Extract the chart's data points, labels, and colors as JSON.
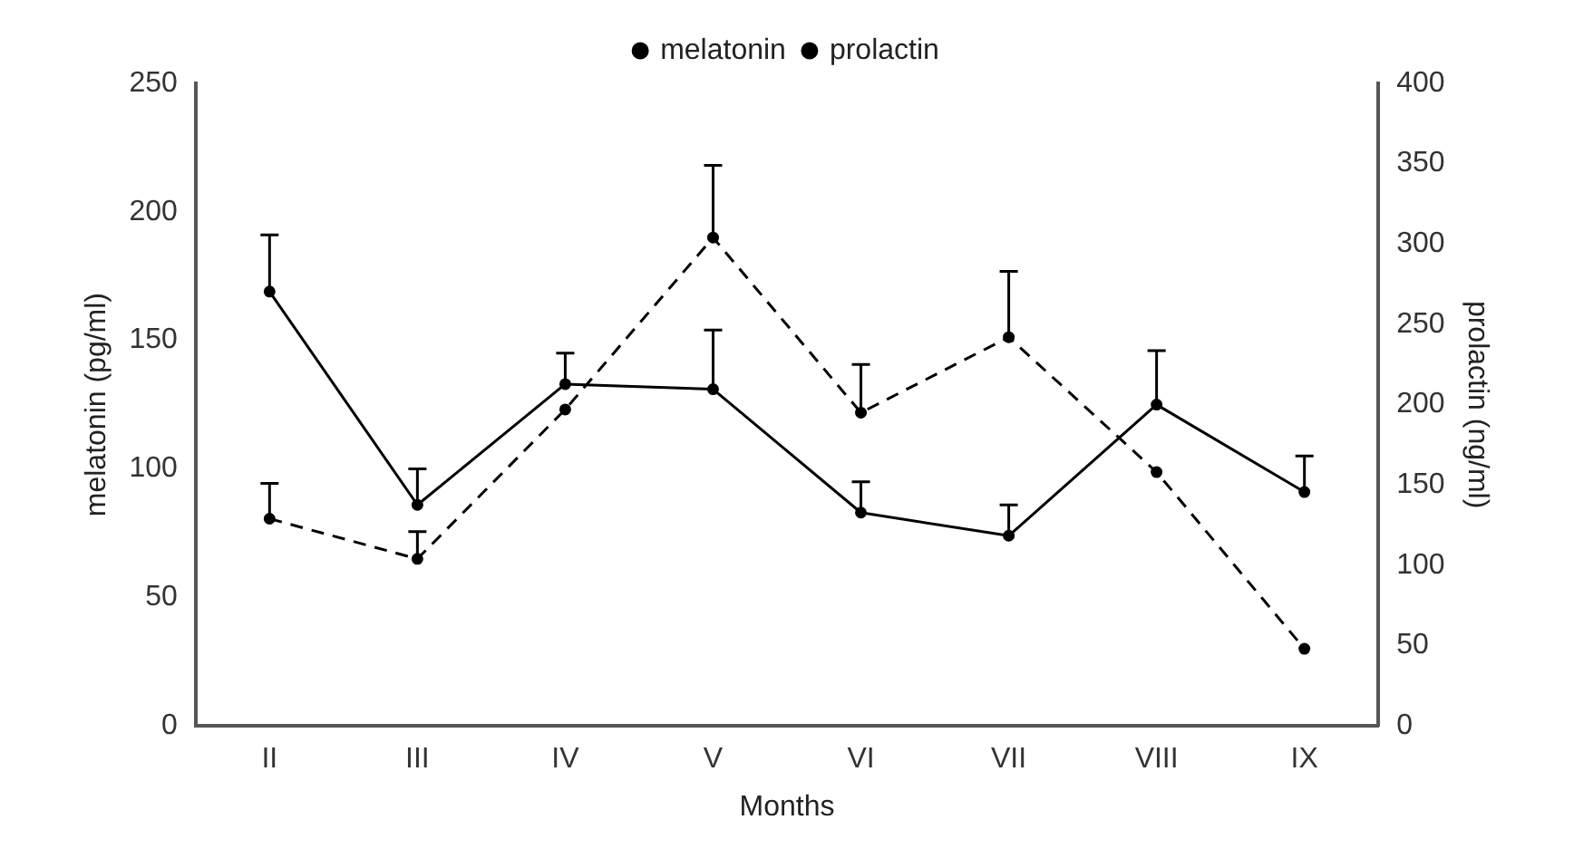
{
  "chart_data": {
    "type": "line",
    "xlabel": "Months",
    "ylabel": "melatonin (pg/ml)",
    "y2label": "prolactin (ng/ml)",
    "categories": [
      "II",
      "III",
      "IV",
      "V",
      "VI",
      "VII",
      "VIII",
      "IX"
    ],
    "series": [
      {
        "name": "melatonin",
        "color": "#000000",
        "line_style": "solid",
        "values": [
          169,
          86,
          133,
          131,
          83,
          74,
          125,
          91
        ],
        "errors": [
          [
            169,
            191
          ],
          [
            86,
            100
          ],
          [
            133,
            145
          ],
          [
            131,
            154
          ],
          [
            83,
            95
          ],
          [
            74,
            86
          ],
          [
            125,
            146
          ],
          [
            91,
            105
          ]
        ]
      },
      {
        "name": "prolactin",
        "color": "#000000",
        "line_style": "dashed",
        "axis": "y2",
        "values": [
          129,
          104,
          197,
          304,
          195,
          242,
          158,
          48
        ],
        "errors": [
          [
            129,
            151
          ],
          [
            104,
            121
          ],
          null,
          [
            304,
            349
          ],
          [
            195,
            225
          ],
          [
            242,
            283
          ],
          null,
          null
        ]
      }
    ],
    "ylim": [
      0,
      250
    ],
    "yticks": [
      0,
      50,
      100,
      150,
      200,
      250
    ],
    "y2lim": [
      0,
      400
    ],
    "y2ticks": [
      0,
      50,
      100,
      150,
      200,
      250,
      300,
      350,
      400
    ],
    "grid": false,
    "legend": "top",
    "marker": "circle"
  }
}
